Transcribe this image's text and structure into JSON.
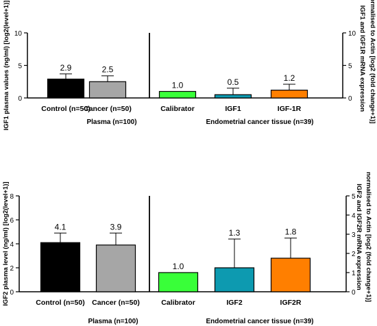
{
  "chart_data": [
    {
      "type": "bar",
      "group_labels": [
        "Plasma (n=100)",
        "Endometrial cancer tissue  (n=39)"
      ],
      "left_axis": {
        "label": "IGF1 plasma values (ng/ml) [log2(level+1)]",
        "ylim": [
          0,
          10
        ],
        "ticks": [
          "0",
          "5",
          "10"
        ],
        "tick_values": [
          0,
          5,
          10
        ]
      },
      "right_axis": {
        "label_lines": [
          "IGF1 and IGF1R mRNA expression",
          "normalised to Actin [log2 (fold change+1)]"
        ],
        "ylim": [
          0,
          10
        ],
        "ticks": [
          "0",
          "5",
          "10"
        ],
        "tick_values": [
          0,
          5,
          10
        ]
      },
      "bars": [
        {
          "category": "Control (n=50)",
          "value": 2.9,
          "error": 0.8,
          "label": "2.9",
          "color": "#000000",
          "axis": "left"
        },
        {
          "category": "Cancer (n=50)",
          "value": 2.5,
          "error": 0.9,
          "label": "2.5",
          "color": "#a6a6a6",
          "axis": "left"
        },
        {
          "category": "Calibrator",
          "value": 1.0,
          "error": 0,
          "label": "1.0",
          "color": "#39ff39",
          "axis": "right"
        },
        {
          "category": "IGF1",
          "value": 0.5,
          "error": 1.0,
          "label": "0.5",
          "color": "#0d9ab0",
          "axis": "right"
        },
        {
          "category": "IGF-1R",
          "value": 1.2,
          "error": 0.9,
          "label": "1.2",
          "color": "#ff7f00",
          "axis": "right"
        }
      ]
    },
    {
      "type": "bar",
      "group_labels": [
        "Plasma (n=100)",
        "Endometrial cancer tissue  (n=39)"
      ],
      "left_axis": {
        "label": "IGF2 plasma level (ng/ml) [log2(level+1)]",
        "ylim": [
          0,
          8
        ],
        "ticks": [
          "0",
          "2",
          "4",
          "6",
          "8"
        ],
        "tick_values": [
          0,
          2,
          4,
          6,
          8
        ]
      },
      "right_axis": {
        "label_lines": [
          "IGF2 and IGF2R mRNA expression",
          "normalised to Actin [log2 (fold change+1)]"
        ],
        "ylim": [
          0,
          5
        ],
        "ticks": [
          "0",
          "1",
          "2",
          "3",
          "4",
          "5"
        ],
        "tick_values": [
          0,
          1,
          2,
          3,
          4,
          5
        ]
      },
      "bars": [
        {
          "category": "Control (n=50)",
          "value": 4.1,
          "error": 0.8,
          "label": "4.1",
          "color": "#000000",
          "axis": "left"
        },
        {
          "category": "Cancer (n=50)",
          "value": 3.9,
          "error": 1.0,
          "label": "3.9",
          "color": "#a6a6a6",
          "axis": "left"
        },
        {
          "category": "Calibrator",
          "value": 1.0,
          "error": 0,
          "label": "1.0",
          "color": "#39ff39",
          "axis": "right"
        },
        {
          "category": "IGF2",
          "value": 1.25,
          "error": 1.5,
          "label": "1.3",
          "color": "#0d9ab0",
          "axis": "right"
        },
        {
          "category": "IGF2R",
          "value": 1.75,
          "error": 1.05,
          "label": "1.8",
          "color": "#ff7f00",
          "axis": "right"
        }
      ]
    }
  ]
}
